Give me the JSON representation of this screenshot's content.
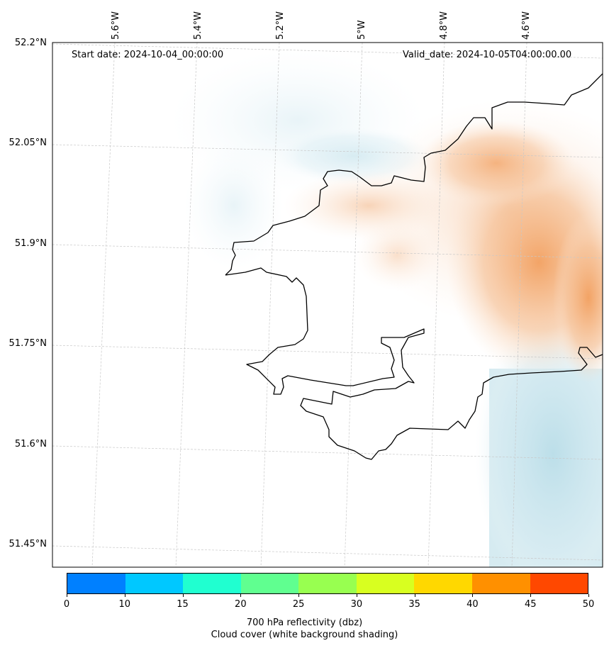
{
  "map": {
    "start_date": "Start date: 2024-10-04_00:00:00",
    "valid_date": "Valid_date: 2024-10-05T04:00:00.00",
    "lon_labels": [
      "5.6°W",
      "5.4°W",
      "5.2°W",
      "5°W",
      "4.8°W",
      "4.6°W"
    ],
    "lat_labels": [
      "52.2°N",
      "52.05°N",
      "51.9°N",
      "51.75°N",
      "51.6°N",
      "51.45°N"
    ],
    "colors": {
      "coast": "#000000",
      "grid": "#c8c8c8",
      "reflectivity_low": "#f6c9a6",
      "reflectivity_high": "#f2a060",
      "cloud_blue": "#b9dde8"
    }
  },
  "colorbar": {
    "ticks": [
      "0",
      "10",
      "15",
      "20",
      "25",
      "30",
      "35",
      "40",
      "45",
      "50"
    ],
    "colors": [
      "#0080ff",
      "#00c8ff",
      "#20ffd0",
      "#60ff90",
      "#98ff50",
      "#d8ff20",
      "#ffd800",
      "#ff9000",
      "#ff4800"
    ],
    "label_line1": "700 hPa reflectivity (dbz)",
    "label_line2": "Cloud cover (white background shading)"
  }
}
